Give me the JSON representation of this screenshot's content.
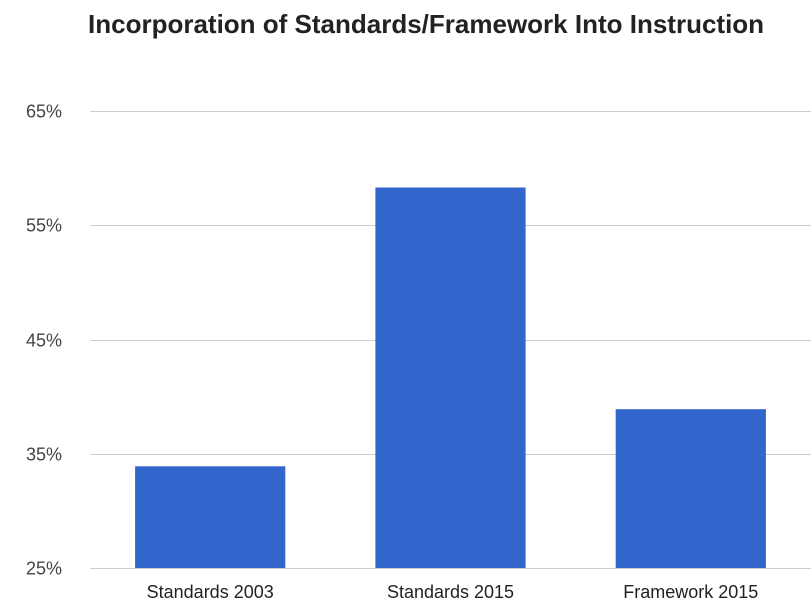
{
  "chart_data": {
    "type": "bar",
    "title": "Incorporation of Standards/Framework Into Instruction",
    "xlabel": "",
    "ylabel": "",
    "categories": [
      "Standards 2003",
      "Standards 2015",
      "Framework 2015"
    ],
    "values": [
      33.9,
      58.3,
      38.9
    ],
    "value_unit": "%",
    "ylim": [
      25,
      65
    ],
    "yticks": [
      25,
      35,
      45,
      55,
      65
    ],
    "ytick_labels": [
      "25%",
      "35%",
      "45%",
      "55%",
      "65%"
    ],
    "grid": true,
    "legend": "none",
    "bar_color": "#3366cc",
    "grid_color": "#cccccc"
  }
}
